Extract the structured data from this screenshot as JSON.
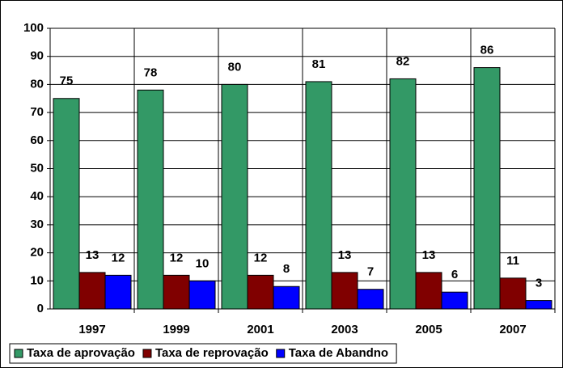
{
  "chart_data": {
    "type": "bar",
    "categories": [
      "1997",
      "1999",
      "2001",
      "2003",
      "2005",
      "2007"
    ],
    "series": [
      {
        "name": "Taxa de aprovação",
        "color": "#339966",
        "values": [
          75,
          78,
          80,
          81,
          82,
          86
        ]
      },
      {
        "name": "Taxa de reprovação",
        "color": "#800000",
        "values": [
          13,
          12,
          12,
          13,
          13,
          11
        ]
      },
      {
        "name": "Taxa de Abandno",
        "color": "#0000ff",
        "values": [
          12,
          10,
          8,
          7,
          6,
          3
        ]
      }
    ],
    "ylim": [
      0,
      100
    ],
    "yticks": [
      0,
      10,
      20,
      30,
      40,
      50,
      60,
      70,
      80,
      90,
      100
    ],
    "grid": true,
    "legend": "bottom"
  }
}
